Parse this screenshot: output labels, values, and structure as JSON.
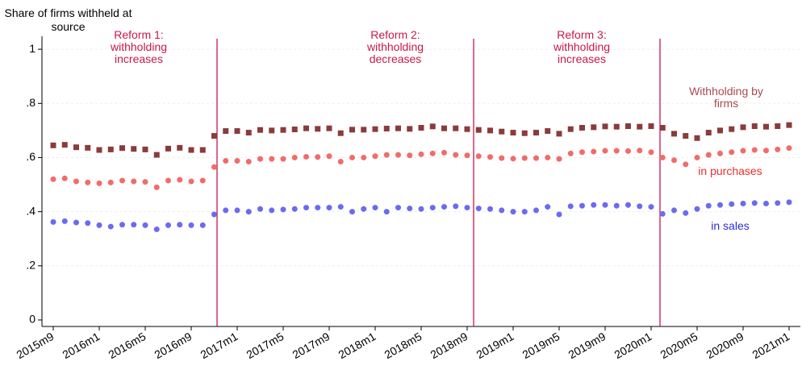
{
  "chart_data": {
    "type": "scatter",
    "ylabel": "Share of firms withheld at source",
    "categories": [
      "2015m9",
      null,
      null,
      null,
      "2016m1",
      null,
      null,
      null,
      "2016m5",
      null,
      null,
      null,
      "2016m9",
      null,
      null,
      null,
      "2017m1",
      null,
      null,
      null,
      "2017m5",
      null,
      null,
      null,
      "2017m9",
      null,
      null,
      null,
      "2018m1",
      null,
      null,
      null,
      "2018m5",
      null,
      null,
      null,
      "2018m9",
      null,
      null,
      null,
      "2019m1",
      null,
      null,
      null,
      "2019m5",
      null,
      null,
      null,
      "2019m9",
      null,
      null,
      null,
      "2020m1",
      null,
      null,
      null,
      "2020m5",
      null,
      null,
      null,
      "2020m9",
      null,
      null,
      null,
      "2021m1"
    ],
    "series": [
      {
        "name": "Withholding by firms",
        "color": "#8b3b3b",
        "label_color": "#a84a4f",
        "marker": "square",
        "values": [
          0.645,
          0.647,
          0.638,
          0.636,
          0.628,
          0.63,
          0.635,
          0.632,
          0.63,
          0.61,
          0.633,
          0.636,
          0.628,
          0.628,
          0.68,
          0.698,
          0.698,
          0.692,
          0.702,
          0.7,
          0.702,
          0.704,
          0.708,
          0.706,
          0.708,
          0.69,
          0.703,
          0.703,
          0.705,
          0.707,
          0.708,
          0.706,
          0.71,
          0.715,
          0.708,
          0.708,
          0.705,
          0.702,
          0.7,
          0.696,
          0.692,
          0.69,
          0.692,
          0.698,
          0.688,
          0.705,
          0.71,
          0.712,
          0.715,
          0.714,
          0.716,
          0.714,
          0.716,
          0.71,
          0.688,
          0.68,
          0.672,
          0.692,
          0.7,
          0.705,
          0.712,
          0.716,
          0.714,
          0.716,
          0.72
        ]
      },
      {
        "name": "in purchases",
        "color": "#f26b6b",
        "label_color": "#e8302f",
        "marker": "circle",
        "values": [
          0.52,
          0.523,
          0.512,
          0.508,
          0.505,
          0.508,
          0.515,
          0.512,
          0.51,
          0.49,
          0.515,
          0.518,
          0.512,
          0.515,
          0.565,
          0.588,
          0.588,
          0.585,
          0.595,
          0.595,
          0.595,
          0.6,
          0.603,
          0.602,
          0.605,
          0.585,
          0.6,
          0.6,
          0.605,
          0.61,
          0.61,
          0.608,
          0.612,
          0.615,
          0.618,
          0.61,
          0.608,
          0.605,
          0.602,
          0.598,
          0.596,
          0.598,
          0.598,
          0.6,
          0.595,
          0.615,
          0.62,
          0.622,
          0.625,
          0.625,
          0.624,
          0.626,
          0.62,
          0.6,
          0.59,
          0.575,
          0.6,
          0.61,
          0.615,
          0.62,
          0.625,
          0.628,
          0.626,
          0.63,
          0.635
        ]
      },
      {
        "name": "in sales",
        "color": "#6b6bf0",
        "label_color": "#2b2bd8",
        "marker": "circle",
        "values": [
          0.362,
          0.365,
          0.36,
          0.358,
          0.35,
          0.345,
          0.352,
          0.352,
          0.35,
          0.335,
          0.35,
          0.352,
          0.35,
          0.35,
          0.39,
          0.405,
          0.405,
          0.4,
          0.41,
          0.405,
          0.408,
          0.41,
          0.415,
          0.415,
          0.415,
          0.418,
          0.4,
          0.41,
          0.415,
          0.4,
          0.415,
          0.412,
          0.41,
          0.415,
          0.418,
          0.42,
          0.415,
          0.412,
          0.41,
          0.405,
          0.4,
          0.4,
          0.405,
          0.418,
          0.39,
          0.42,
          0.422,
          0.425,
          0.425,
          0.422,
          0.425,
          0.42,
          0.418,
          0.392,
          0.405,
          0.395,
          0.41,
          0.422,
          0.425,
          0.428,
          0.43,
          0.432,
          0.43,
          0.432,
          0.435
        ]
      }
    ],
    "annotations": [
      "Reform 1: withholding increases",
      "Reform 2: withholding decreases",
      "Reform 3: withholding increases"
    ],
    "ylim": [
      -0.024,
      1.048
    ],
    "yticks": [
      0,
      {
        "value": 0.2,
        "label": ".2"
      },
      {
        "value": 0.4,
        "label": ".4"
      },
      {
        "value": 0.6,
        "label": ".6"
      },
      {
        "value": 0.8,
        "label": ".8"
      },
      1
    ],
    "grid": true
  }
}
